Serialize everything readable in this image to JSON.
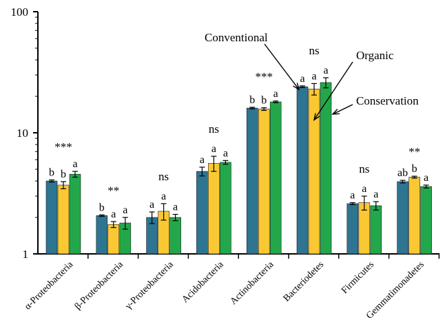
{
  "chart_data": {
    "type": "bar",
    "title": "",
    "xlabel": "",
    "ylabel": "",
    "yscale": "log",
    "ylim": [
      1,
      100
    ],
    "yticks": [
      "1",
      "10",
      "100"
    ],
    "categories": [
      "α-Proteobacteria",
      "β-Proteobacteria",
      "γ-Proteobacteria",
      "Acidobacteria",
      "Actinobacteria",
      "Bacteriodetes",
      "Firmicutes",
      "Gemmatimonadetes"
    ],
    "series": [
      {
        "name": "Conventional",
        "color": "#2e7592",
        "values": [
          4.0,
          2.07,
          2.0,
          4.8,
          16.0,
          24.0,
          2.6,
          3.95
        ],
        "errors": [
          0.08,
          0.03,
          0.22,
          0.4,
          0.25,
          0.4,
          0.05,
          0.1
        ]
      },
      {
        "name": "Organic",
        "color": "#fac832",
        "values": [
          3.7,
          1.75,
          2.25,
          5.6,
          15.7,
          23.0,
          2.65,
          4.3
        ],
        "errors": [
          0.25,
          0.1,
          0.35,
          0.8,
          0.4,
          2.5,
          0.35,
          0.08
        ]
      },
      {
        "name": "Conservation",
        "color": "#22a84a",
        "values": [
          4.55,
          1.8,
          2.0,
          5.7,
          18.0,
          26.0,
          2.5,
          3.6
        ],
        "errors": [
          0.25,
          0.2,
          0.12,
          0.2,
          0.3,
          2.5,
          0.2,
          0.1
        ]
      }
    ],
    "letters": [
      [
        "b",
        "b",
        "a"
      ],
      [
        "b",
        "a",
        "a"
      ],
      [
        "a",
        "a",
        "a"
      ],
      [
        "a",
        "a",
        "a"
      ],
      [
        "b",
        "b",
        "a"
      ],
      [
        "a",
        "a",
        "a"
      ],
      [
        "a",
        "a",
        "a"
      ],
      [
        "ab",
        "b",
        "a"
      ]
    ],
    "significance": [
      "***",
      "**",
      "ns",
      "ns",
      "***",
      "ns",
      "ns",
      "**"
    ],
    "legend": "callout arrows pointing to Bacteriodetes bars",
    "grid": false
  }
}
